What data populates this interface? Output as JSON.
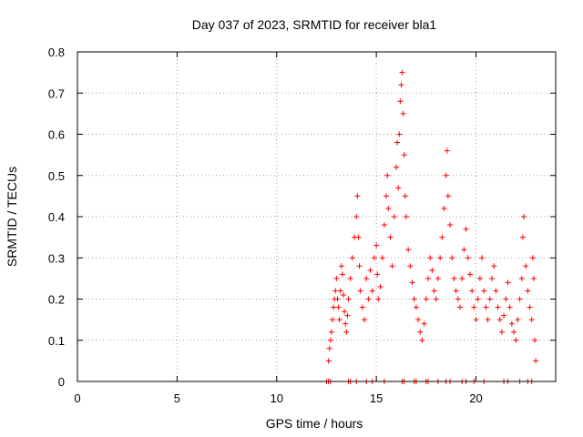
{
  "chart_data": {
    "type": "scatter",
    "title": "Day 037 of 2023, SRMTID for receiver bla1",
    "xlabel": "GPS time / hours",
    "ylabel": "SRMTID / TECUs",
    "xlim": [
      0,
      24
    ],
    "ylim": [
      0,
      0.8
    ],
    "xticks": [
      0,
      5,
      10,
      15,
      20
    ],
    "xtick_labels": [
      "0",
      "5",
      "10",
      "15",
      "20"
    ],
    "yticks": [
      0,
      0.1,
      0.2,
      0.3,
      0.4,
      0.5,
      0.6,
      0.7,
      0.8
    ],
    "ytick_labels": [
      "0",
      "0.1",
      "0.2",
      "0.3",
      "0.4",
      "0.5",
      "0.6",
      "0.7",
      "0.8"
    ],
    "grid": true,
    "marker": "+",
    "colors": {
      "series": "#ff0000",
      "axis": "#000000",
      "grid": "#a0a0a0",
      "background": "#ffffff"
    },
    "series": [
      {
        "name": "SRMTID",
        "points": [
          [
            12.5,
            0.0
          ],
          [
            12.6,
            0.0
          ],
          [
            12.7,
            0.0
          ],
          [
            13.6,
            0.0
          ],
          [
            13.7,
            0.0
          ],
          [
            14.0,
            0.0
          ],
          [
            14.5,
            0.0
          ],
          [
            14.8,
            0.0
          ],
          [
            15.4,
            0.0
          ],
          [
            16.3,
            0.0
          ],
          [
            16.4,
            0.0
          ],
          [
            16.9,
            0.0
          ],
          [
            17.0,
            0.0
          ],
          [
            17.5,
            0.0
          ],
          [
            17.6,
            0.0
          ],
          [
            18.1,
            0.0
          ],
          [
            18.5,
            0.0
          ],
          [
            18.7,
            0.0
          ],
          [
            19.3,
            0.0
          ],
          [
            19.5,
            0.0
          ],
          [
            19.9,
            0.0
          ],
          [
            20.4,
            0.0
          ],
          [
            21.4,
            0.0
          ],
          [
            21.6,
            0.0
          ],
          [
            22.2,
            0.0
          ],
          [
            22.6,
            0.0
          ],
          [
            22.8,
            0.0
          ],
          [
            12.6,
            0.05
          ],
          [
            12.65,
            0.08
          ],
          [
            12.7,
            0.1
          ],
          [
            12.75,
            0.12
          ],
          [
            12.8,
            0.15
          ],
          [
            12.85,
            0.18
          ],
          [
            12.9,
            0.2
          ],
          [
            12.95,
            0.22
          ],
          [
            13.0,
            0.25
          ],
          [
            13.05,
            0.2
          ],
          [
            13.1,
            0.18
          ],
          [
            13.15,
            0.15
          ],
          [
            13.2,
            0.22
          ],
          [
            13.25,
            0.28
          ],
          [
            13.3,
            0.26
          ],
          [
            13.35,
            0.21
          ],
          [
            13.4,
            0.17
          ],
          [
            13.45,
            0.14
          ],
          [
            13.5,
            0.12
          ],
          [
            13.55,
            0.16
          ],
          [
            13.6,
            0.2
          ],
          [
            13.7,
            0.25
          ],
          [
            13.8,
            0.3
          ],
          [
            13.9,
            0.35
          ],
          [
            14.0,
            0.4
          ],
          [
            14.05,
            0.45
          ],
          [
            14.1,
            0.35
          ],
          [
            14.15,
            0.28
          ],
          [
            14.2,
            0.22
          ],
          [
            14.3,
            0.18
          ],
          [
            14.4,
            0.15
          ],
          [
            14.5,
            0.25
          ],
          [
            14.6,
            0.2
          ],
          [
            14.7,
            0.27
          ],
          [
            14.8,
            0.22
          ],
          [
            14.9,
            0.3
          ],
          [
            15.0,
            0.33
          ],
          [
            15.05,
            0.26
          ],
          [
            15.1,
            0.2
          ],
          [
            15.2,
            0.23
          ],
          [
            15.3,
            0.3
          ],
          [
            15.4,
            0.38
          ],
          [
            15.5,
            0.45
          ],
          [
            15.55,
            0.5
          ],
          [
            15.6,
            0.42
          ],
          [
            15.7,
            0.35
          ],
          [
            15.8,
            0.28
          ],
          [
            15.9,
            0.4
          ],
          [
            16.0,
            0.52
          ],
          [
            16.05,
            0.58
          ],
          [
            16.1,
            0.47
          ],
          [
            16.15,
            0.6
          ],
          [
            16.2,
            0.68
          ],
          [
            16.25,
            0.72
          ],
          [
            16.3,
            0.75
          ],
          [
            16.35,
            0.65
          ],
          [
            16.4,
            0.55
          ],
          [
            16.45,
            0.45
          ],
          [
            16.5,
            0.4
          ],
          [
            16.6,
            0.32
          ],
          [
            16.7,
            0.28
          ],
          [
            16.8,
            0.24
          ],
          [
            16.9,
            0.2
          ],
          [
            17.0,
            0.18
          ],
          [
            17.1,
            0.15
          ],
          [
            17.2,
            0.12
          ],
          [
            17.3,
            0.1
          ],
          [
            17.4,
            0.14
          ],
          [
            17.5,
            0.2
          ],
          [
            17.6,
            0.25
          ],
          [
            17.7,
            0.3
          ],
          [
            17.8,
            0.27
          ],
          [
            17.9,
            0.22
          ],
          [
            18.0,
            0.2
          ],
          [
            18.1,
            0.25
          ],
          [
            18.2,
            0.3
          ],
          [
            18.3,
            0.35
          ],
          [
            18.4,
            0.42
          ],
          [
            18.5,
            0.5
          ],
          [
            18.55,
            0.56
          ],
          [
            18.6,
            0.45
          ],
          [
            18.7,
            0.38
          ],
          [
            18.8,
            0.3
          ],
          [
            18.9,
            0.25
          ],
          [
            19.0,
            0.22
          ],
          [
            19.1,
            0.2
          ],
          [
            19.2,
            0.18
          ],
          [
            19.3,
            0.25
          ],
          [
            19.4,
            0.32
          ],
          [
            19.5,
            0.37
          ],
          [
            19.6,
            0.3
          ],
          [
            19.7,
            0.26
          ],
          [
            19.8,
            0.22
          ],
          [
            19.9,
            0.18
          ],
          [
            20.0,
            0.15
          ],
          [
            20.1,
            0.2
          ],
          [
            20.2,
            0.25
          ],
          [
            20.3,
            0.3
          ],
          [
            20.4,
            0.22
          ],
          [
            20.5,
            0.18
          ],
          [
            20.6,
            0.15
          ],
          [
            20.7,
            0.2
          ],
          [
            20.8,
            0.25
          ],
          [
            20.9,
            0.28
          ],
          [
            21.0,
            0.22
          ],
          [
            21.1,
            0.18
          ],
          [
            21.2,
            0.15
          ],
          [
            21.3,
            0.12
          ],
          [
            21.4,
            0.16
          ],
          [
            21.5,
            0.2
          ],
          [
            21.6,
            0.24
          ],
          [
            21.7,
            0.18
          ],
          [
            21.8,
            0.14
          ],
          [
            21.9,
            0.12
          ],
          [
            22.0,
            0.1
          ],
          [
            22.1,
            0.15
          ],
          [
            22.2,
            0.2
          ],
          [
            22.3,
            0.25
          ],
          [
            22.35,
            0.35
          ],
          [
            22.4,
            0.4
          ],
          [
            22.5,
            0.28
          ],
          [
            22.6,
            0.22
          ],
          [
            22.7,
            0.18
          ],
          [
            22.8,
            0.15
          ],
          [
            22.85,
            0.3
          ],
          [
            22.9,
            0.25
          ],
          [
            22.95,
            0.1
          ],
          [
            23.0,
            0.05
          ]
        ]
      }
    ]
  }
}
